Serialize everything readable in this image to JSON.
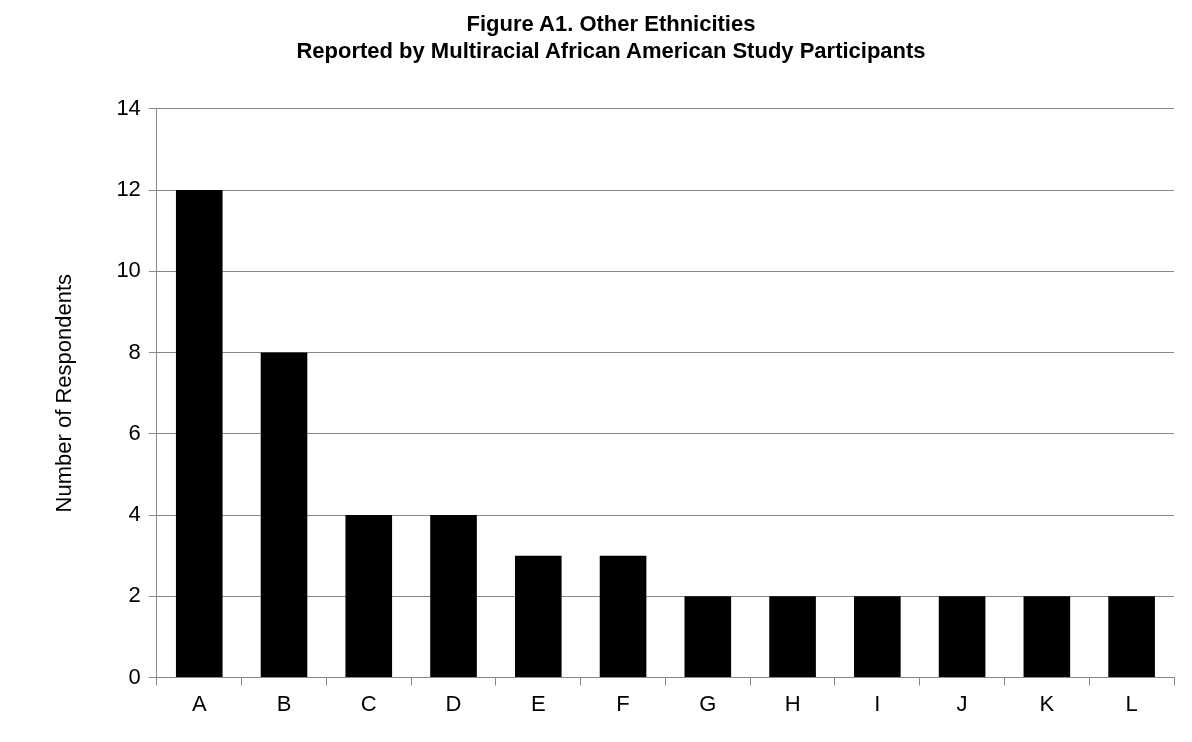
{
  "chart_data": {
    "type": "bar",
    "title": "Figure A1. Other Ethnicities\nReported by Multiracial African American Study Participants",
    "ylabel": "Number of Respondents",
    "categories": [
      "A",
      "B",
      "C",
      "D",
      "E",
      "F",
      "G",
      "H",
      "I",
      "J",
      "K",
      "L"
    ],
    "values": [
      12,
      8,
      4,
      4,
      3,
      3,
      2,
      2,
      2,
      2,
      2,
      2
    ],
    "color": "#000000",
    "ylim": [
      0,
      14
    ],
    "yticks": [
      0,
      2,
      4,
      6,
      8,
      10,
      12,
      14
    ],
    "grid": "y",
    "legend": false
  }
}
